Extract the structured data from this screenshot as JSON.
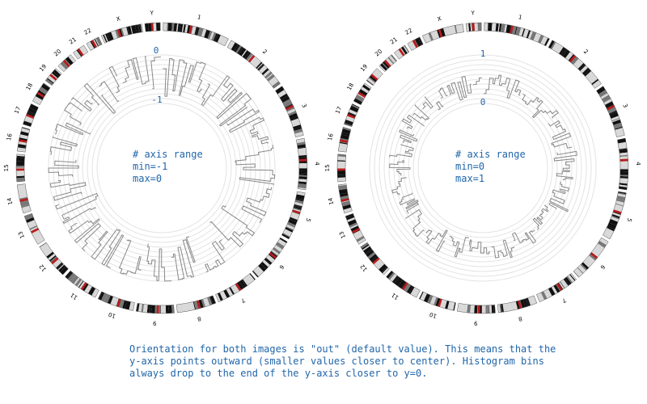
{
  "colors": {
    "annotation": "#2266aa",
    "grid": "#e3e3e3",
    "histogram": "#888888",
    "band_dark": "#111111",
    "band_mid": "#777777",
    "band_light": "#d8d8d8",
    "centromere": "#b81c1c"
  },
  "chromosomes": [
    "1",
    "2",
    "3",
    "4",
    "5",
    "6",
    "7",
    "8",
    "9",
    "10",
    "11",
    "12",
    "13",
    "14",
    "15",
    "16",
    "17",
    "18",
    "19",
    "20",
    "21",
    "22",
    "X",
    "Y"
  ],
  "panels": [
    {
      "id": "left",
      "axis_note": [
        "# axis range",
        "min=-1",
        "max=0"
      ],
      "outer_tick": "0",
      "inner_tick": "-1",
      "range": [
        -1,
        0
      ],
      "orientation": "out"
    },
    {
      "id": "right",
      "axis_note": [
        "# axis range",
        "min=0",
        "max=1"
      ],
      "outer_tick": "1",
      "inner_tick": "0",
      "range": [
        0,
        1
      ],
      "orientation": "out"
    }
  ],
  "caption": [
    "Orientation for both images is \"out\" (default value). This means that the",
    "y-axis points outward (smaller values closer to center). Histogram bins",
    "always drop to the end of the y-axis closer to y=0."
  ]
}
